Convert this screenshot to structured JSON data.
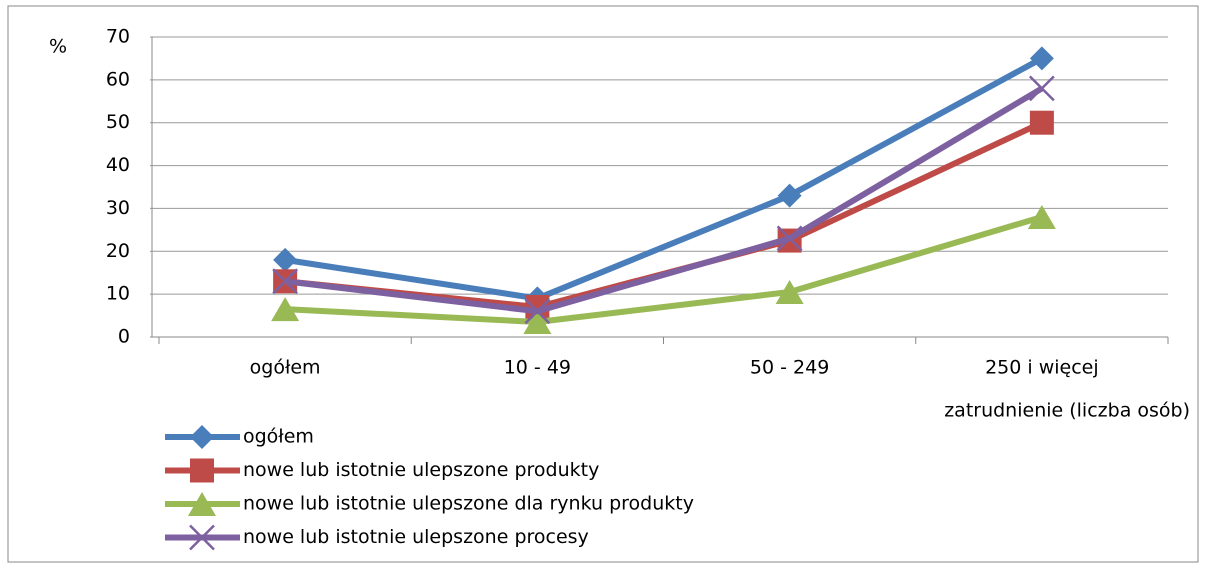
{
  "chart_data": {
    "type": "line",
    "y_label": "%",
    "x_label": "zatrudnienie (liczba osób)",
    "categories": [
      "ogółem",
      "10 - 49",
      "50 - 249",
      "250 i więcej"
    ],
    "series": [
      {
        "name": "ogółem",
        "color": "#4a7ebb",
        "marker": "diamond",
        "values": [
          18,
          9,
          33,
          65
        ]
      },
      {
        "name": "nowe lub istotnie ulepszone produkty",
        "color": "#be4b48",
        "marker": "square",
        "values": [
          13,
          7,
          22.5,
          50
        ]
      },
      {
        "name": "nowe lub istotnie ulepszone dla rynku produkty",
        "color": "#98b954",
        "marker": "triangle",
        "values": [
          6.5,
          3.5,
          10.5,
          28
        ]
      },
      {
        "name": "nowe lub istotnie ulepszone procesy",
        "color": "#7d60a0",
        "marker": "x",
        "values": [
          13,
          6,
          23,
          58
        ]
      }
    ],
    "ylim": [
      0,
      70
    ],
    "yticks": [
      0,
      10,
      20,
      30,
      40,
      50,
      60,
      70
    ],
    "grid": true,
    "legend": "bottom"
  }
}
